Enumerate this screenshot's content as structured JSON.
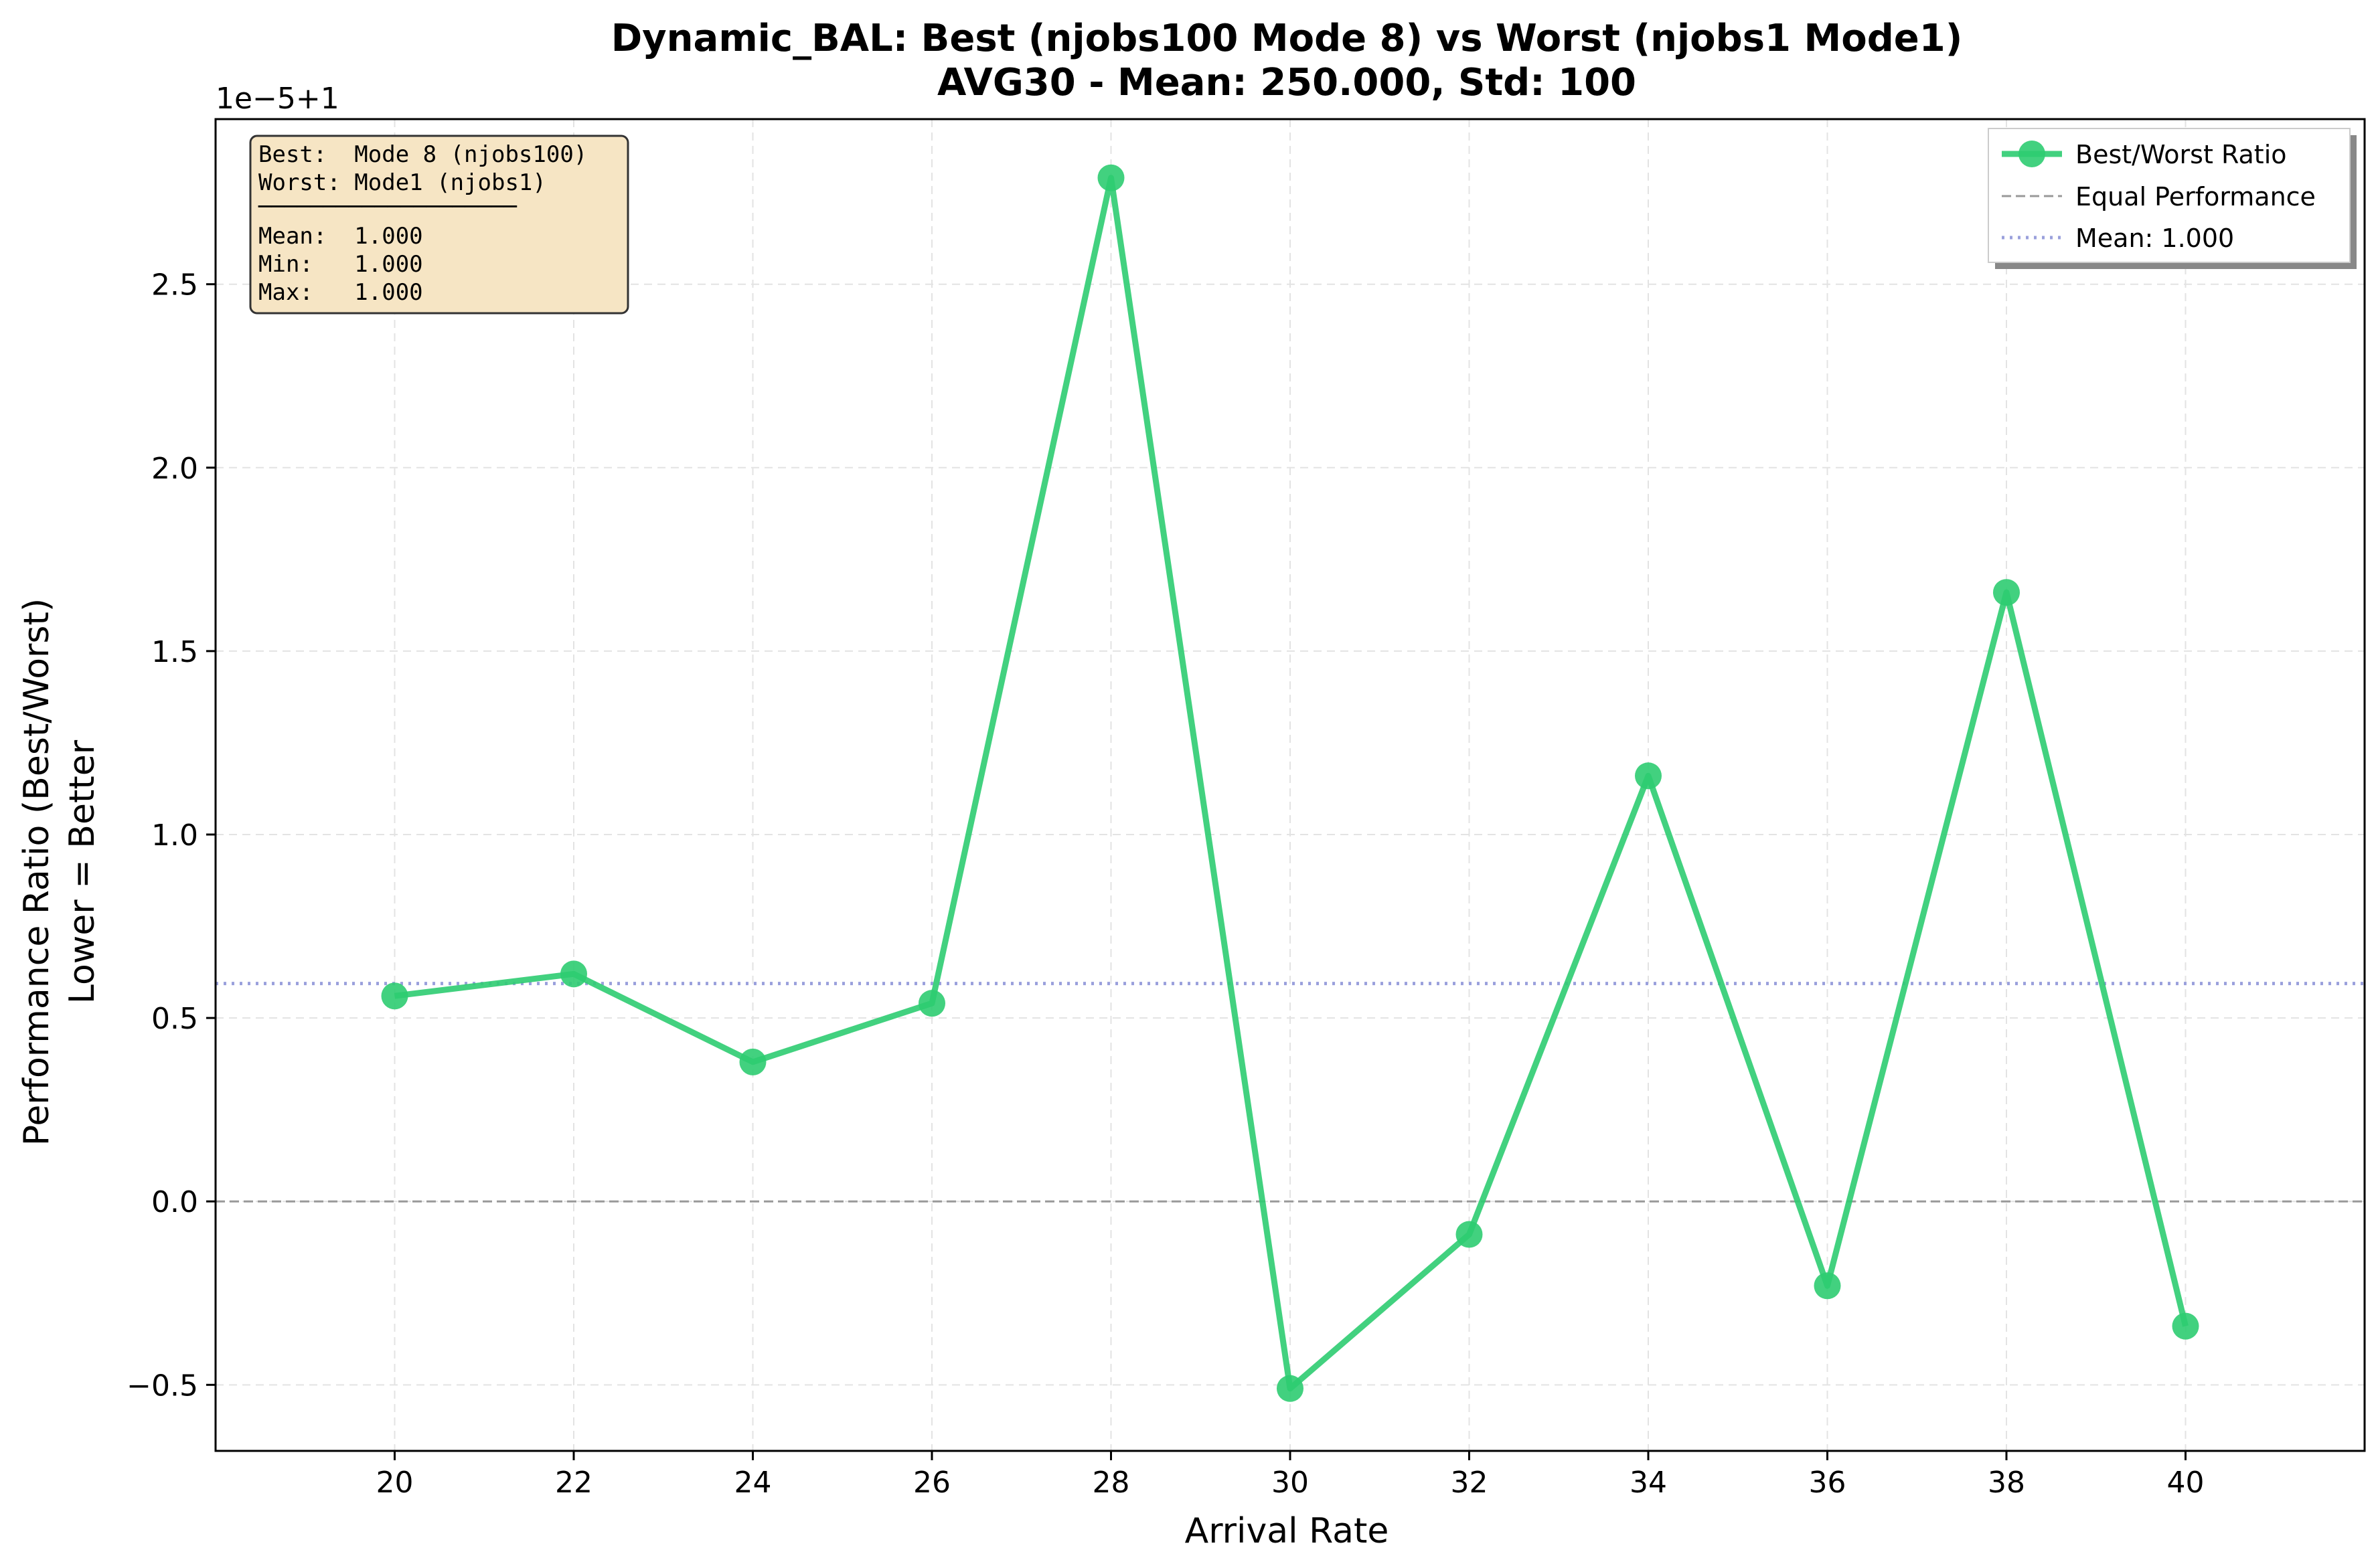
{
  "chart_data": {
    "type": "line",
    "title_line1": "Dynamic_BAL: Best (njobs100 Mode 8) vs Worst (njobs1 Mode1)",
    "title_line2": "AVG30 - Mean: 250.000, Std: 100",
    "xlabel": "Arrival Rate",
    "ylabel_line1": "Performance Ratio (Best/Worst)",
    "ylabel_line2": "Lower = Better",
    "y_offset_label": "1e−5+1",
    "x_ticks": [
      "20",
      "22",
      "24",
      "26",
      "28",
      "30",
      "32",
      "34",
      "36",
      "38",
      "40"
    ],
    "y_ticks": [
      "−0.5",
      "0.0",
      "0.5",
      "1.0",
      "1.5",
      "2.0",
      "2.5"
    ],
    "xlim": [
      18,
      42
    ],
    "ylim": [
      -0.68,
      2.95
    ],
    "grid": true,
    "series": [
      {
        "name": "Best/Worst Ratio",
        "color": "#2ecc71",
        "x": [
          20,
          22,
          24,
          26,
          28,
          30,
          32,
          34,
          36,
          38,
          40
        ],
        "y": [
          0.56,
          0.62,
          0.38,
          0.54,
          2.79,
          -0.51,
          -0.09,
          1.16,
          -0.23,
          1.66,
          -0.34
        ]
      }
    ],
    "reference_lines": {
      "equal": {
        "label": "Equal Performance",
        "y": 0.0,
        "color": "#999999"
      },
      "mean": {
        "label": "Mean: 1.000",
        "y": 0.594,
        "color": "#9aa0dc"
      }
    },
    "legend_placement": "top-right",
    "stats_box": {
      "lines": [
        "Best:  Mode 8 (njobs100)",
        "Worst: Mode1 (njobs1)",
        "Mean:  1.000",
        "Min:   1.000",
        "Max:   1.000"
      ],
      "divider": "────────────────────",
      "background": "#f6e5c4"
    }
  }
}
